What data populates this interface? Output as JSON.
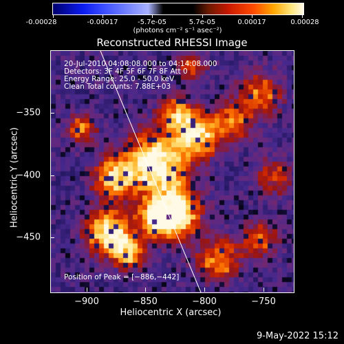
{
  "colorbar": {
    "tick_labels": [
      "-0.00028",
      "-0.00017",
      "-5.7e-05",
      "5.7e-05",
      "0.00017",
      "0.00028"
    ],
    "units": "(photons cm⁻² s⁻¹ asec⁻²)"
  },
  "title": "Reconstructed RHESSI Image",
  "info": {
    "time": "20-Jul-2010 04:08:08.000 to 04:14:08.000",
    "detectors": "Detectors: 3F 4F 5F 6F 7F 8F  Att 0",
    "energy": "Energy Range: 25.0 - 50.0 keV",
    "clean": "Clean     Total counts: 7.88E+03"
  },
  "axes": {
    "x_title": "Heliocentric X (arcsec)",
    "y_title": "Heliocentric Y (arcsec)",
    "x_ticks": [
      "−900",
      "−850",
      "−800",
      "−750"
    ],
    "y_ticks": [
      "−350",
      "−400",
      "−450"
    ]
  },
  "peak": "Position of Peak = [−886,−442]",
  "footer_date": "9-May-2022 15:12"
}
